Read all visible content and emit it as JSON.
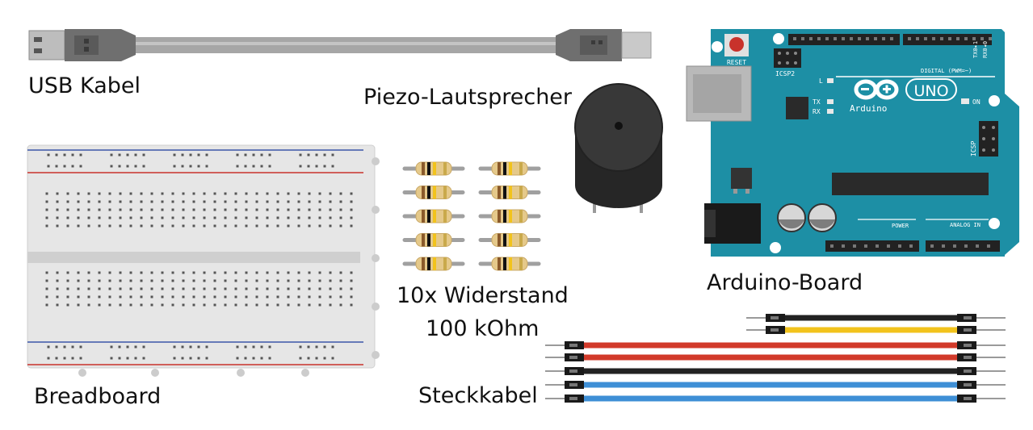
{
  "labels": {
    "usb": "USB Kabel",
    "piezo": "Piezo-Lautsprecher",
    "resistor_line1": "10x Widerstand",
    "resistor_line2": "100 kOhm",
    "arduino": "Arduino-Board",
    "breadboard": "Breadboard",
    "wires": "Steckkabel"
  },
  "board": {
    "reset": "RESET",
    "icsp2": "ICSP2",
    "icsp": "ICSP",
    "brand": "Arduino",
    "model": "UNO",
    "on": "ON",
    "led_l": "L",
    "led_tx": "TX",
    "led_rx": "RX",
    "digital": "DIGITAL (PWM=~)",
    "power": "POWER",
    "analog": "ANALOG IN",
    "tx_pin": "TX0▸1",
    "rx_pin": "RX0◂0"
  },
  "wire_colors": [
    "#222222",
    "#f2c31c",
    "#d23a2a",
    "#d23a2a",
    "#222222",
    "#3e8fd6",
    "#3e8fd6"
  ],
  "resistor_count": 10,
  "colors": {
    "arduino_teal": "#1d8fa5",
    "usb_gray": "#8c8c8c",
    "breadboard": "#e6e6e6",
    "piezo": "#2d2d2d"
  }
}
